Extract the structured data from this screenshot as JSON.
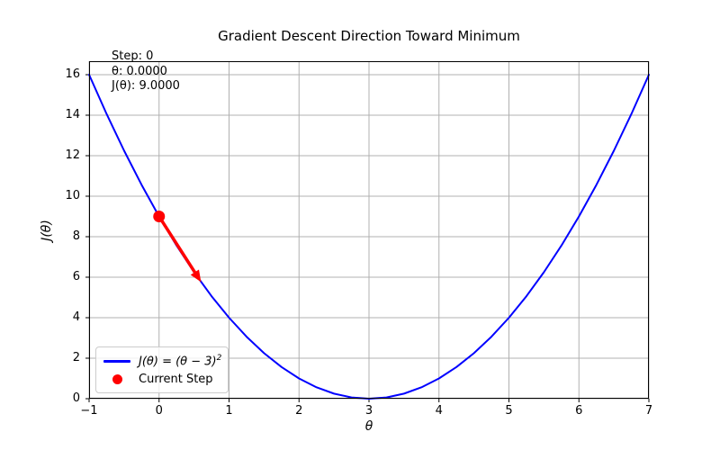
{
  "chart_data": {
    "type": "line",
    "title": "Gradient Descent Direction Toward Minimum",
    "xlabel": "θ",
    "ylabel": "J(θ)",
    "xlim": [
      -1,
      7
    ],
    "ylim": [
      0,
      16.667
    ],
    "x_ticks": [
      -1,
      0,
      1,
      2,
      3,
      4,
      5,
      6,
      7
    ],
    "y_ticks": [
      0,
      2,
      4,
      6,
      8,
      10,
      12,
      14,
      16
    ],
    "grid": true,
    "series": [
      {
        "name": "J(θ) = (θ − 3)²",
        "color": "#0000ff",
        "x": [
          -1,
          -0.75,
          -0.5,
          -0.25,
          0,
          0.25,
          0.5,
          0.75,
          1,
          1.25,
          1.5,
          1.75,
          2,
          2.25,
          2.5,
          2.75,
          3,
          3.25,
          3.5,
          3.75,
          4,
          4.25,
          4.5,
          4.75,
          5,
          5.25,
          5.5,
          5.75,
          6,
          6.25,
          6.5,
          6.75,
          7
        ],
        "y": [
          16,
          14.0625,
          12.25,
          10.5625,
          9,
          7.5625,
          6.25,
          5.0625,
          4,
          3.0625,
          2.25,
          1.5625,
          1,
          0.5625,
          0.25,
          0.0625,
          0,
          0.0625,
          0.25,
          0.5625,
          1,
          1.5625,
          2.25,
          3.0625,
          4,
          5.0625,
          6.25,
          7.5625,
          9,
          10.5625,
          12.25,
          14.0625,
          16
        ],
        "linewidth": 2
      }
    ],
    "current_step": {
      "theta": 0.0,
      "j": 9.0,
      "color": "#ff0000",
      "marker": "dot"
    },
    "gradient_arrow": {
      "from": [
        0.0,
        9.0
      ],
      "to": [
        0.6,
        5.76
      ],
      "color": "#ff0000"
    },
    "annotation": {
      "lines": [
        "Step: 0",
        "θ: 0.0000",
        "J(θ): 9.0000"
      ]
    },
    "legend": {
      "position": "lower left",
      "entries": [
        {
          "label_base": "J(θ) = (θ − 3)",
          "label_sup": "2",
          "marker": "line",
          "color": "#0000ff"
        },
        {
          "label_base": "Current Step",
          "label_sup": "",
          "marker": "dot",
          "color": "#ff0000"
        }
      ]
    },
    "colors": {
      "curve": "#0000ff",
      "marker": "#ff0000",
      "grid": "#b0b0b0",
      "spine": "#000000",
      "background": "#ffffff"
    }
  }
}
